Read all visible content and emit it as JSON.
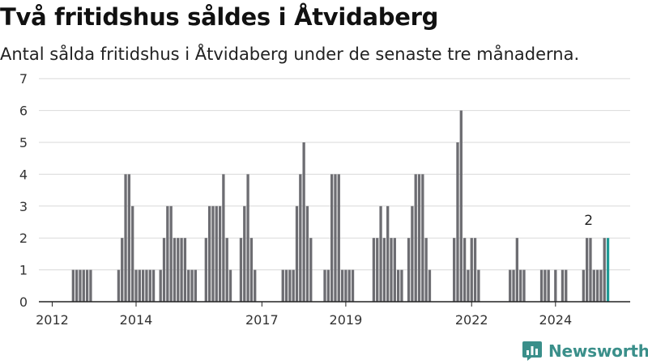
{
  "title": "Två fritidshus såldes i Åtvidaberg",
  "subtitle": "Antal sålda fritidshus i Åtvidaberg under de senaste tre månaderna.",
  "brand": {
    "name": "Newsworthy",
    "color": "#3a8f8a",
    "icon": "newsworthy-logo-icon"
  },
  "colors": {
    "bar": "#6d6d72",
    "highlight": "#1f9b96",
    "grid": "#d9d9d9",
    "axis": "#222222"
  },
  "chart_data": {
    "type": "bar",
    "x_start": "2011-10",
    "x_unit": "month",
    "ylim": [
      0,
      7
    ],
    "yticks": [
      0,
      1,
      2,
      3,
      4,
      5,
      6,
      7
    ],
    "xticks": [
      {
        "label": "2012",
        "month": "2012-01"
      },
      {
        "label": "2014",
        "month": "2014-01"
      },
      {
        "label": "2017",
        "month": "2017-01"
      },
      {
        "label": "2019",
        "month": "2019-01"
      },
      {
        "label": "2022",
        "month": "2022-01"
      },
      {
        "label": "2024",
        "month": "2024-01"
      }
    ],
    "values": [
      0,
      0,
      0,
      0,
      0,
      0,
      0,
      0,
      0,
      1,
      1,
      1,
      1,
      1,
      1,
      0,
      0,
      0,
      0,
      0,
      0,
      0,
      1,
      2,
      4,
      4,
      3,
      1,
      1,
      1,
      1,
      1,
      1,
      0,
      1,
      2,
      3,
      3,
      2,
      2,
      2,
      2,
      1,
      1,
      1,
      0,
      0,
      2,
      3,
      3,
      3,
      3,
      4,
      2,
      1,
      0,
      0,
      2,
      3,
      4,
      2,
      1,
      0,
      0,
      0,
      0,
      0,
      0,
      0,
      1,
      1,
      1,
      1,
      3,
      4,
      5,
      3,
      2,
      0,
      0,
      0,
      1,
      1,
      4,
      4,
      4,
      1,
      1,
      1,
      1,
      0,
      0,
      0,
      0,
      0,
      2,
      2,
      3,
      2,
      3,
      2,
      2,
      1,
      1,
      0,
      2,
      3,
      4,
      4,
      4,
      2,
      1,
      0,
      0,
      0,
      0,
      0,
      0,
      2,
      5,
      6,
      2,
      1,
      2,
      2,
      1,
      0,
      0,
      0,
      0,
      0,
      0,
      0,
      0,
      1,
      1,
      2,
      1,
      1,
      0,
      0,
      0,
      0,
      1,
      1,
      1,
      0,
      1,
      0,
      1,
      1,
      0,
      0,
      0,
      0,
      1,
      2,
      2,
      1,
      1,
      1,
      2,
      2
    ],
    "annotation": {
      "label": "2",
      "month": "2024-10"
    }
  }
}
